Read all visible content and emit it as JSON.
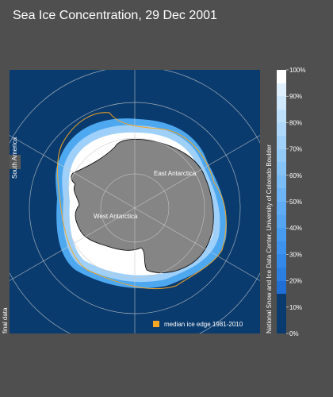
{
  "header": {
    "title": "Sea Ice Concentration, 29 Dec 2001"
  },
  "map": {
    "labels": {
      "south_america": "South America",
      "east_antarctica": "East Antarctica",
      "west_antarctica": "West Antarctica"
    },
    "status": "final data",
    "legend": {
      "label": "median ice edge 1981-2010",
      "color": "#f5a623"
    },
    "credit": "National Snow and Ice Data Center, University of Colorado Boulder"
  },
  "colorbar": {
    "ticks": [
      {
        "value": 0,
        "label": "0%"
      },
      {
        "value": 10,
        "label": "10%"
      },
      {
        "value": 20,
        "label": "20%"
      },
      {
        "value": 30,
        "label": "30%"
      },
      {
        "value": 40,
        "label": "40%"
      },
      {
        "value": 50,
        "label": "50%"
      },
      {
        "value": 60,
        "label": "60%"
      },
      {
        "value": 70,
        "label": "70%"
      },
      {
        "value": 80,
        "label": "80%"
      },
      {
        "value": 90,
        "label": "90%"
      },
      {
        "value": 100,
        "label": "100%"
      }
    ]
  }
}
